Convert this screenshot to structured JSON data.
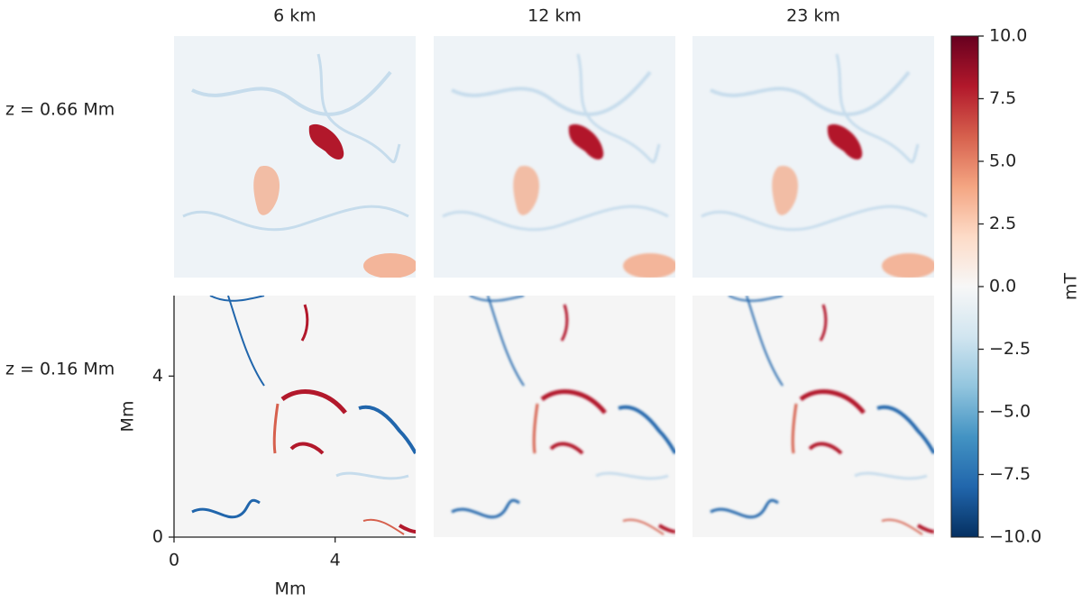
{
  "chart_data": {
    "type": "heatmap",
    "columns": [
      "6 km",
      "12 km",
      "23 km"
    ],
    "rows": [
      "z = 0.66 Mm",
      "z = 0.16 Mm"
    ],
    "xlabel": "Mm",
    "ylabel": "Mm",
    "xlim": [
      0,
      6
    ],
    "ylim": [
      0,
      6
    ],
    "xticks": [
      0,
      4
    ],
    "yticks": [
      0,
      4
    ],
    "colorbar": {
      "label": "mT",
      "clim": [
        -10,
        10
      ],
      "ticks": [
        {
          "value": 10,
          "label": "10.0"
        },
        7.5,
        {
          "value": 5,
          "label": "5.0"
        },
        2.5,
        {
          "value": 0,
          "label": "0.0"
        },
        {
          "value": -2.5,
          "label": "−2.5"
        },
        {
          "value": -5,
          "label": "−5.0"
        },
        {
          "value": -7.5,
          "label": "−7.5"
        },
        {
          "value": -10,
          "label": "−10.0"
        }
      ],
      "colormap": [
        "#053061",
        "#2166ac",
        "#4393c3",
        "#92c5de",
        "#d1e5f0",
        "#f7f7f7",
        "#fddbc7",
        "#f4a582",
        "#d6604d",
        "#b2182b",
        "#67001f"
      ]
    }
  }
}
